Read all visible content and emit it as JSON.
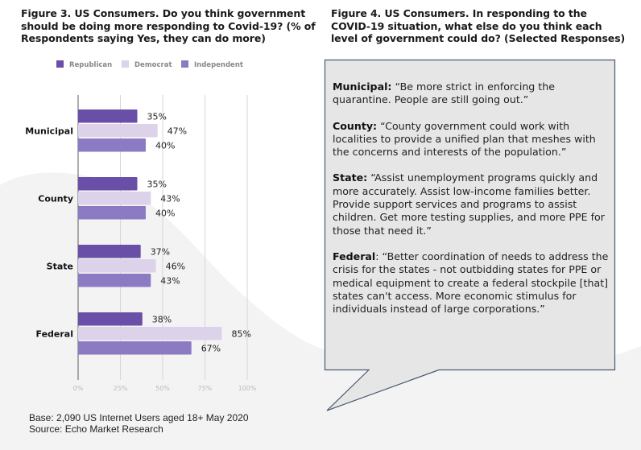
{
  "figure3": {
    "title": "Figure 3. US Consumers. Do you think government should be doing more responding to Covid-19? (% of Respondents saying Yes, they can do more)"
  },
  "figure4": {
    "title": "Figure 4. US Consumers. In responding to the COVID-19 situation, what else do you think each level of government could do? (Selected Responses)",
    "responses": [
      {
        "level": "Municipal:",
        "quote": "“Be more strict in enforcing the quarantine. People are still going out.”"
      },
      {
        "level": "County:",
        "quote": "“County government could work with localities to provide a unified plan that meshes with the concerns and interests of the population.”"
      },
      {
        "level": "State:",
        "quote": "“Assist unemployment programs quickly and more accurately. Assist low-income families better. Provide support services and programs to assist children. Get more testing supplies, and more PPE for those that need it.”"
      },
      {
        "level": "Federal",
        "quote": ": “Better coordination of needs to address the crisis for the states - not outbidding states for PPE or medical equipment to create a federal stockpile [that] states can't access. More economic stimulus for individuals instead of large corporations.”"
      }
    ]
  },
  "footnote": {
    "base": "Base: 2,090 US Internet Users aged 18+ May 2020",
    "source": "Source: Echo Market Research"
  },
  "chart_data": {
    "type": "bar",
    "orientation": "horizontal",
    "title": "Figure 3. US Consumers. Do you think government should be doing more responding to Covid-19? (% of Respondents saying Yes, they can do more)",
    "categories": [
      "Municipal",
      "County",
      "State",
      "Federal"
    ],
    "series": [
      {
        "name": "Republican",
        "color": "#6a4fa8",
        "values": [
          35,
          35,
          37,
          38
        ]
      },
      {
        "name": "Democrat",
        "color": "#dcd3ea",
        "values": [
          47,
          43,
          46,
          85
        ]
      },
      {
        "name": "Independent",
        "color": "#8c7bc2",
        "values": [
          40,
          40,
          43,
          67
        ]
      }
    ],
    "value_suffix": "%",
    "xlabel": "",
    "ylabel": "",
    "xlim": [
      0,
      100
    ],
    "xticks": [
      0,
      25,
      50,
      75,
      100
    ],
    "xtick_labels": [
      "0%",
      "25%",
      "50%",
      "75%",
      "100%"
    ],
    "grid": true,
    "legend": "top"
  }
}
